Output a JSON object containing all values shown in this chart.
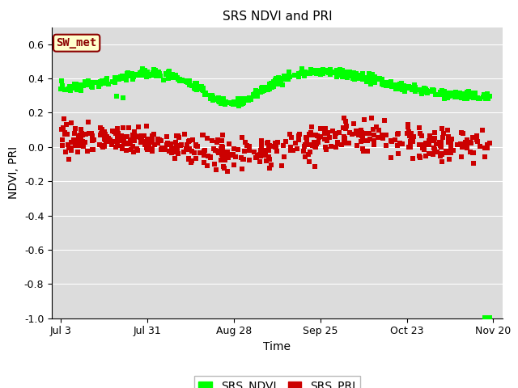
{
  "title": "SRS NDVI and PRI",
  "xlabel": "Time",
  "ylabel": "NDVI, PRI",
  "ylim": [
    -1.0,
    0.7
  ],
  "yticks": [
    -1.0,
    -0.8,
    -0.6,
    -0.4,
    -0.2,
    0.0,
    0.2,
    0.4,
    0.6
  ],
  "background_color": "#dcdcdc",
  "annotation_text": "SW_met",
  "annotation_color": "#8B0000",
  "annotation_bg": "#ffffcc",
  "ndvi_color": "#00ff00",
  "pri_color": "#cc0000",
  "marker_size": 25,
  "x_tick_labels": [
    "Jul 3",
    "Jul 31",
    "Aug 28",
    "Sep 25",
    "Oct 23",
    "Nov 20"
  ],
  "x_tick_positions": [
    0,
    28,
    56,
    84,
    112,
    140
  ]
}
